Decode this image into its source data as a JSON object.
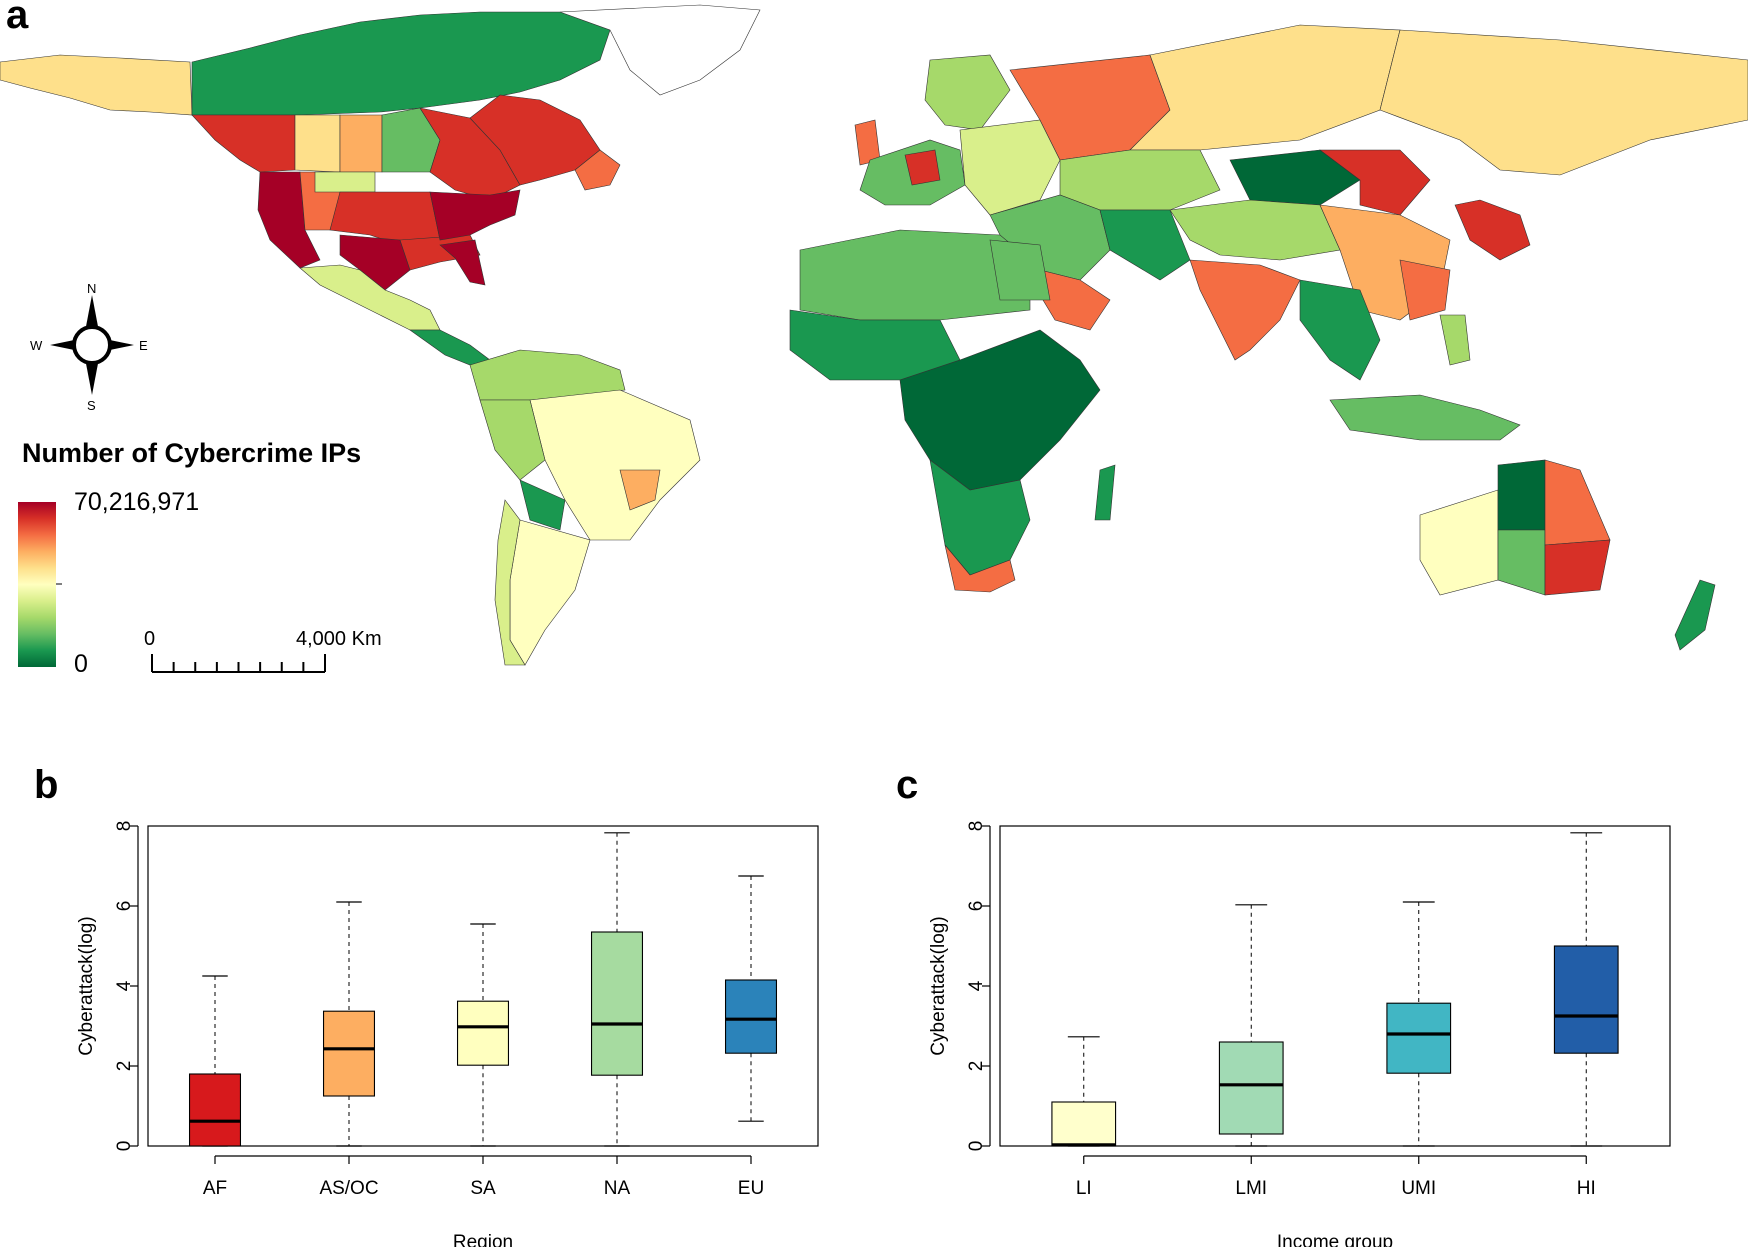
{
  "figure": {
    "panel_a_label": "a",
    "panel_b_label": "b",
    "panel_c_label": "c"
  },
  "map": {
    "legend_title": "Number of Cybercrime IPs",
    "legend_max": "70,216,971",
    "legend_min": "0",
    "legend_colors": [
      "#a50026",
      "#d73027",
      "#f46d43",
      "#fdae61",
      "#fee08b",
      "#ffffbf",
      "#d9ef8b",
      "#a6d96a",
      "#66bd63",
      "#1a9850",
      "#006837"
    ],
    "scale_zero": "0",
    "scale_max": "4,000 Km",
    "compass": {
      "n": "N",
      "s": "S",
      "e": "E",
      "w": "W"
    },
    "ocean_color": "#ffffff"
  },
  "chart_data": [
    {
      "type": "box",
      "title": "",
      "xlabel": "Region",
      "ylabel": "Cyberattack(log)",
      "ylim": [
        0,
        8
      ],
      "yticks": [
        "0",
        "2",
        "4",
        "6",
        "8"
      ],
      "categories": [
        "AF",
        "AS/OC",
        "SA",
        "NA",
        "EU"
      ],
      "boxes": [
        {
          "label": "AF",
          "min": 0,
          "q1": 0,
          "median": 0.62,
          "q3": 1.8,
          "max": 4.25,
          "color": "#d7191c"
        },
        {
          "label": "AS/OC",
          "min": 0,
          "q1": 1.25,
          "median": 2.43,
          "q3": 3.37,
          "max": 6.1,
          "color": "#fdae61"
        },
        {
          "label": "SA",
          "min": 0,
          "q1": 2.02,
          "median": 2.98,
          "q3": 3.62,
          "max": 5.55,
          "color": "#ffffbf"
        },
        {
          "label": "NA",
          "min": 0,
          "q1": 1.77,
          "median": 3.05,
          "q3": 5.35,
          "max": 7.83,
          "color": "#a6dba0"
        },
        {
          "label": "EU",
          "min": 0.62,
          "q1": 2.32,
          "median": 3.17,
          "q3": 4.15,
          "max": 6.75,
          "color": "#2b83ba"
        }
      ]
    },
    {
      "type": "box",
      "title": "",
      "xlabel": "Income group",
      "ylabel": "Cyberattack(log)",
      "ylim": [
        0,
        8
      ],
      "yticks": [
        "0",
        "2",
        "4",
        "6",
        "8"
      ],
      "categories": [
        "LI",
        "LMI",
        "UMI",
        "HI"
      ],
      "boxes": [
        {
          "label": "LI",
          "min": 0,
          "q1": 0,
          "median": 0.03,
          "q3": 1.1,
          "max": 2.73,
          "color": "#ffffcc"
        },
        {
          "label": "LMI",
          "min": 0,
          "q1": 0.3,
          "median": 1.53,
          "q3": 2.6,
          "max": 6.03,
          "color": "#a1dab4"
        },
        {
          "label": "UMI",
          "min": 0,
          "q1": 1.82,
          "median": 2.8,
          "q3": 3.57,
          "max": 6.1,
          "color": "#41b6c4"
        },
        {
          "label": "HI",
          "min": 0,
          "q1": 2.32,
          "median": 3.25,
          "q3": 5.0,
          "max": 7.83,
          "color": "#225ea8"
        }
      ]
    }
  ]
}
